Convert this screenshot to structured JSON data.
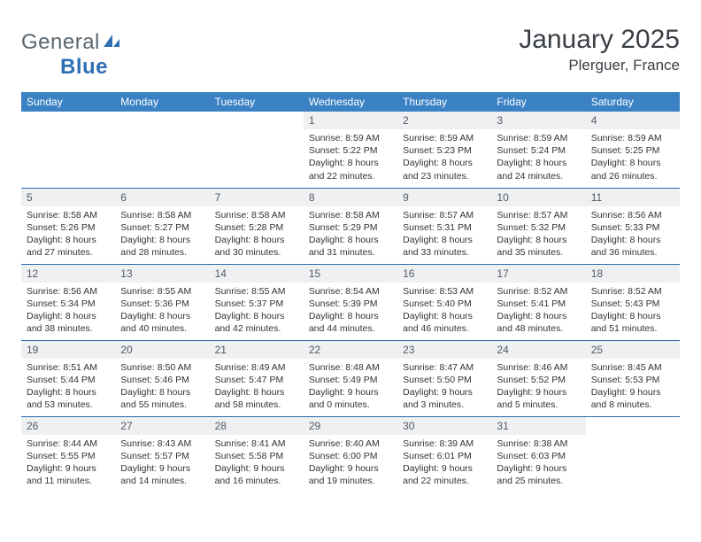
{
  "brand": {
    "part1": "General",
    "part2": "Blue"
  },
  "title": "January 2025",
  "location": "Plerguer, France",
  "colors": {
    "header_bg": "#3a82c4",
    "header_text": "#ffffff",
    "daynum_bg": "#eef0f2",
    "row_border": "#2f6aa8",
    "logo_gray": "#5a6770",
    "logo_blue": "#2e6fb5"
  },
  "weekdays": [
    "Sunday",
    "Monday",
    "Tuesday",
    "Wednesday",
    "Thursday",
    "Friday",
    "Saturday"
  ],
  "weeks": [
    [
      null,
      null,
      null,
      {
        "n": "1",
        "sr": "8:59 AM",
        "ss": "5:22 PM",
        "dl": "8 hours and 22 minutes."
      },
      {
        "n": "2",
        "sr": "8:59 AM",
        "ss": "5:23 PM",
        "dl": "8 hours and 23 minutes."
      },
      {
        "n": "3",
        "sr": "8:59 AM",
        "ss": "5:24 PM",
        "dl": "8 hours and 24 minutes."
      },
      {
        "n": "4",
        "sr": "8:59 AM",
        "ss": "5:25 PM",
        "dl": "8 hours and 26 minutes."
      }
    ],
    [
      {
        "n": "5",
        "sr": "8:58 AM",
        "ss": "5:26 PM",
        "dl": "8 hours and 27 minutes."
      },
      {
        "n": "6",
        "sr": "8:58 AM",
        "ss": "5:27 PM",
        "dl": "8 hours and 28 minutes."
      },
      {
        "n": "7",
        "sr": "8:58 AM",
        "ss": "5:28 PM",
        "dl": "8 hours and 30 minutes."
      },
      {
        "n": "8",
        "sr": "8:58 AM",
        "ss": "5:29 PM",
        "dl": "8 hours and 31 minutes."
      },
      {
        "n": "9",
        "sr": "8:57 AM",
        "ss": "5:31 PM",
        "dl": "8 hours and 33 minutes."
      },
      {
        "n": "10",
        "sr": "8:57 AM",
        "ss": "5:32 PM",
        "dl": "8 hours and 35 minutes."
      },
      {
        "n": "11",
        "sr": "8:56 AM",
        "ss": "5:33 PM",
        "dl": "8 hours and 36 minutes."
      }
    ],
    [
      {
        "n": "12",
        "sr": "8:56 AM",
        "ss": "5:34 PM",
        "dl": "8 hours and 38 minutes."
      },
      {
        "n": "13",
        "sr": "8:55 AM",
        "ss": "5:36 PM",
        "dl": "8 hours and 40 minutes."
      },
      {
        "n": "14",
        "sr": "8:55 AM",
        "ss": "5:37 PM",
        "dl": "8 hours and 42 minutes."
      },
      {
        "n": "15",
        "sr": "8:54 AM",
        "ss": "5:39 PM",
        "dl": "8 hours and 44 minutes."
      },
      {
        "n": "16",
        "sr": "8:53 AM",
        "ss": "5:40 PM",
        "dl": "8 hours and 46 minutes."
      },
      {
        "n": "17",
        "sr": "8:52 AM",
        "ss": "5:41 PM",
        "dl": "8 hours and 48 minutes."
      },
      {
        "n": "18",
        "sr": "8:52 AM",
        "ss": "5:43 PM",
        "dl": "8 hours and 51 minutes."
      }
    ],
    [
      {
        "n": "19",
        "sr": "8:51 AM",
        "ss": "5:44 PM",
        "dl": "8 hours and 53 minutes."
      },
      {
        "n": "20",
        "sr": "8:50 AM",
        "ss": "5:46 PM",
        "dl": "8 hours and 55 minutes."
      },
      {
        "n": "21",
        "sr": "8:49 AM",
        "ss": "5:47 PM",
        "dl": "8 hours and 58 minutes."
      },
      {
        "n": "22",
        "sr": "8:48 AM",
        "ss": "5:49 PM",
        "dl": "9 hours and 0 minutes."
      },
      {
        "n": "23",
        "sr": "8:47 AM",
        "ss": "5:50 PM",
        "dl": "9 hours and 3 minutes."
      },
      {
        "n": "24",
        "sr": "8:46 AM",
        "ss": "5:52 PM",
        "dl": "9 hours and 5 minutes."
      },
      {
        "n": "25",
        "sr": "8:45 AM",
        "ss": "5:53 PM",
        "dl": "9 hours and 8 minutes."
      }
    ],
    [
      {
        "n": "26",
        "sr": "8:44 AM",
        "ss": "5:55 PM",
        "dl": "9 hours and 11 minutes."
      },
      {
        "n": "27",
        "sr": "8:43 AM",
        "ss": "5:57 PM",
        "dl": "9 hours and 14 minutes."
      },
      {
        "n": "28",
        "sr": "8:41 AM",
        "ss": "5:58 PM",
        "dl": "9 hours and 16 minutes."
      },
      {
        "n": "29",
        "sr": "8:40 AM",
        "ss": "6:00 PM",
        "dl": "9 hours and 19 minutes."
      },
      {
        "n": "30",
        "sr": "8:39 AM",
        "ss": "6:01 PM",
        "dl": "9 hours and 22 minutes."
      },
      {
        "n": "31",
        "sr": "8:38 AM",
        "ss": "6:03 PM",
        "dl": "9 hours and 25 minutes."
      },
      null
    ]
  ],
  "labels": {
    "sunrise": "Sunrise:",
    "sunset": "Sunset:",
    "daylight": "Daylight:"
  }
}
